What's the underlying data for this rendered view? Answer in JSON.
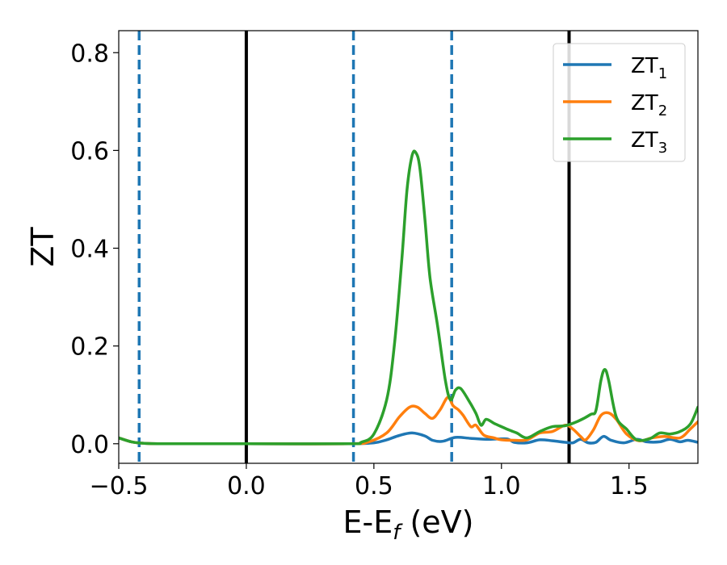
{
  "chart_data": {
    "type": "line",
    "xlabel": "E-E",
    "xlabel_sub": "f",
    "xlabel_unit": " (eV)",
    "ylabel": "ZT",
    "xlim": [
      -0.5,
      1.77
    ],
    "ylim": [
      -0.04,
      0.845
    ],
    "xticks": [
      -0.5,
      0.0,
      0.5,
      1.0,
      1.5
    ],
    "xtick_labels": [
      "−0.5",
      "0.0",
      "0.5",
      "1.0",
      "1.5"
    ],
    "yticks": [
      0.0,
      0.2,
      0.4,
      0.6,
      0.8
    ],
    "ytick_labels": [
      "0.0",
      "0.2",
      "0.4",
      "0.6",
      "0.8"
    ],
    "grid": false,
    "legend_position": "top-right",
    "vertical_lines": [
      {
        "x": -0.42,
        "style": "dashed",
        "color": "#1f77b4"
      },
      {
        "x": 0.0,
        "style": "solid",
        "color": "#000000"
      },
      {
        "x": 0.42,
        "style": "dashed",
        "color": "#1f77b4"
      },
      {
        "x": 0.805,
        "style": "dashed",
        "color": "#1f77b4"
      },
      {
        "x": 1.265,
        "style": "solid",
        "color": "#000000"
      }
    ],
    "series": [
      {
        "name": "ZT",
        "name_sub": "1",
        "color": "#1f77b4",
        "points": [
          [
            -0.5,
            0.012
          ],
          [
            -0.45,
            0.004
          ],
          [
            -0.4,
            0.001
          ],
          [
            -0.3,
            0.0
          ],
          [
            0.0,
            0.0
          ],
          [
            0.4,
            0.0
          ],
          [
            0.5,
            0.002
          ],
          [
            0.55,
            0.008
          ],
          [
            0.6,
            0.017
          ],
          [
            0.65,
            0.022
          ],
          [
            0.7,
            0.016
          ],
          [
            0.73,
            0.007
          ],
          [
            0.77,
            0.005
          ],
          [
            0.82,
            0.013
          ],
          [
            0.88,
            0.011
          ],
          [
            0.95,
            0.009
          ],
          [
            1.02,
            0.01
          ],
          [
            1.05,
            0.003
          ],
          [
            1.1,
            0.002
          ],
          [
            1.15,
            0.008
          ],
          [
            1.2,
            0.006
          ],
          [
            1.25,
            0.003
          ],
          [
            1.28,
            0.002
          ],
          [
            1.31,
            0.009
          ],
          [
            1.34,
            0.002
          ],
          [
            1.37,
            0.003
          ],
          [
            1.4,
            0.015
          ],
          [
            1.43,
            0.007
          ],
          [
            1.48,
            0.002
          ],
          [
            1.53,
            0.009
          ],
          [
            1.57,
            0.004
          ],
          [
            1.62,
            0.004
          ],
          [
            1.66,
            0.009
          ],
          [
            1.7,
            0.004
          ],
          [
            1.73,
            0.007
          ],
          [
            1.77,
            0.003
          ]
        ]
      },
      {
        "name": "ZT",
        "name_sub": "2",
        "color": "#ff7f0e",
        "points": [
          [
            -0.5,
            0.012
          ],
          [
            -0.45,
            0.004
          ],
          [
            -0.4,
            0.001
          ],
          [
            -0.3,
            0.0
          ],
          [
            0.0,
            0.0
          ],
          [
            0.4,
            0.0
          ],
          [
            0.48,
            0.004
          ],
          [
            0.55,
            0.022
          ],
          [
            0.6,
            0.055
          ],
          [
            0.64,
            0.075
          ],
          [
            0.67,
            0.075
          ],
          [
            0.7,
            0.062
          ],
          [
            0.73,
            0.052
          ],
          [
            0.76,
            0.07
          ],
          [
            0.79,
            0.095
          ],
          [
            0.81,
            0.078
          ],
          [
            0.83,
            0.07
          ],
          [
            0.85,
            0.058
          ],
          [
            0.88,
            0.035
          ],
          [
            0.9,
            0.038
          ],
          [
            0.93,
            0.018
          ],
          [
            0.97,
            0.012
          ],
          [
            1.0,
            0.008
          ],
          [
            1.05,
            0.007
          ],
          [
            1.1,
            0.008
          ],
          [
            1.15,
            0.022
          ],
          [
            1.2,
            0.025
          ],
          [
            1.25,
            0.038
          ],
          [
            1.28,
            0.03
          ],
          [
            1.31,
            0.015
          ],
          [
            1.33,
            0.008
          ],
          [
            1.36,
            0.028
          ],
          [
            1.39,
            0.058
          ],
          [
            1.42,
            0.063
          ],
          [
            1.45,
            0.05
          ],
          [
            1.49,
            0.02
          ],
          [
            1.54,
            0.006
          ],
          [
            1.59,
            0.012
          ],
          [
            1.64,
            0.015
          ],
          [
            1.7,
            0.012
          ],
          [
            1.74,
            0.03
          ],
          [
            1.77,
            0.045
          ]
        ]
      },
      {
        "name": "ZT",
        "name_sub": "3",
        "color": "#2ca02c",
        "points": [
          [
            -0.5,
            0.012
          ],
          [
            -0.45,
            0.004
          ],
          [
            -0.4,
            0.001
          ],
          [
            -0.3,
            0.0
          ],
          [
            0.0,
            0.0
          ],
          [
            0.4,
            0.0
          ],
          [
            0.45,
            0.003
          ],
          [
            0.5,
            0.02
          ],
          [
            0.55,
            0.09
          ],
          [
            0.58,
            0.2
          ],
          [
            0.61,
            0.38
          ],
          [
            0.63,
            0.52
          ],
          [
            0.65,
            0.59
          ],
          [
            0.665,
            0.595
          ],
          [
            0.68,
            0.565
          ],
          [
            0.7,
            0.46
          ],
          [
            0.72,
            0.34
          ],
          [
            0.75,
            0.24
          ],
          [
            0.78,
            0.13
          ],
          [
            0.8,
            0.09
          ],
          [
            0.82,
            0.11
          ],
          [
            0.84,
            0.113
          ],
          [
            0.87,
            0.09
          ],
          [
            0.9,
            0.062
          ],
          [
            0.92,
            0.038
          ],
          [
            0.94,
            0.05
          ],
          [
            0.97,
            0.042
          ],
          [
            1.0,
            0.035
          ],
          [
            1.03,
            0.028
          ],
          [
            1.06,
            0.022
          ],
          [
            1.1,
            0.012
          ],
          [
            1.15,
            0.025
          ],
          [
            1.2,
            0.035
          ],
          [
            1.25,
            0.037
          ],
          [
            1.3,
            0.046
          ],
          [
            1.35,
            0.06
          ],
          [
            1.37,
            0.068
          ],
          [
            1.39,
            0.13
          ],
          [
            1.405,
            0.152
          ],
          [
            1.42,
            0.13
          ],
          [
            1.45,
            0.055
          ],
          [
            1.49,
            0.03
          ],
          [
            1.53,
            0.008
          ],
          [
            1.58,
            0.01
          ],
          [
            1.62,
            0.022
          ],
          [
            1.66,
            0.02
          ],
          [
            1.7,
            0.025
          ],
          [
            1.74,
            0.04
          ],
          [
            1.77,
            0.075
          ]
        ]
      }
    ]
  }
}
